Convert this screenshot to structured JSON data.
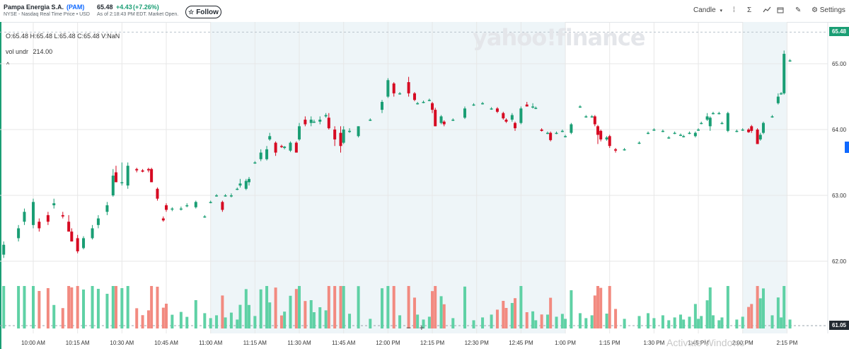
{
  "header": {
    "company": "Pampa Energia S.A.",
    "ticker": "(PAM)",
    "exchange_line": "NYSE - Nasdaq Real Time Price • USD",
    "price": "65.48",
    "change": "+4.43",
    "change_pct": "(+7.26%)",
    "as_of": "As of 2:18:43 PM EDT. Market Open.",
    "follow_label": "Follow",
    "follow_icon": "star-icon"
  },
  "toolbar": {
    "chart_type": "Candle",
    "settings_label": "Settings",
    "icons": [
      "chevron-down-icon",
      "compare-icon",
      "sigma-icon",
      "indicator-icon",
      "calendar-icon",
      "draw-icon",
      "gear-icon"
    ]
  },
  "info": {
    "ohlc": "O:65.48  H:65.48  L:65.48  C:65.48  V:NaN",
    "vol_label": "vol undr",
    "vol_value": "214.00",
    "collapse_glyph": "^"
  },
  "watermark": "yahoo!finance",
  "overlay_text": "Activate Windows",
  "zoom": {
    "minus": "−",
    "plus": "+"
  },
  "colors": {
    "up": "#1a9e74",
    "down": "#d60a22",
    "up_volume": "#5fd1a5",
    "down_volume": "#f28a80",
    "shade": "#eef5f8",
    "accent": "#0f69ff",
    "grid": "#e7e7e7"
  },
  "chart_data": {
    "type": "candlestick",
    "interval": "5 min",
    "x_tick_labels": [
      "10:00 AM",
      "10:15 AM",
      "10:30 AM",
      "10:45 AM",
      "11:00 AM",
      "11:15 AM",
      "11:30 AM",
      "11:45 AM",
      "12:00 PM",
      "12:15 PM",
      "12:30 PM",
      "12:45 PM",
      "1:00 PM",
      "1:15 PM",
      "1:30 PM",
      "1:45 PM",
      "2:00 PM",
      "2:15 PM"
    ],
    "y_tick_labels": [
      "62.00",
      "63.00",
      "64.00",
      "65.00"
    ],
    "y_ticks": [
      62,
      63,
      64,
      65
    ],
    "ylim": [
      61.05,
      65.55
    ],
    "last_price_label": "65.48",
    "last_price": 65.48,
    "volume_level_label": "61.05",
    "volume_level": 61.05,
    "shaded_ranges": [
      [
        "11:00 AM",
        "1:00 PM"
      ],
      [
        "2:00 PM",
        "2:15 PM"
      ]
    ],
    "candles": [
      {
        "t": "09:50",
        "o": 62.1,
        "h": 62.3,
        "l": 62.05,
        "c": 62.25
      },
      {
        "t": "09:55",
        "o": 62.35,
        "h": 62.55,
        "l": 62.3,
        "c": 62.5
      },
      {
        "t": "09:57",
        "o": 62.6,
        "h": 62.8,
        "l": 62.55,
        "c": 62.75
      },
      {
        "t": "10:00",
        "o": 62.55,
        "h": 62.95,
        "l": 62.5,
        "c": 62.9
      },
      {
        "t": "10:02",
        "o": 62.6,
        "h": 62.65,
        "l": 62.45,
        "c": 62.5
      },
      {
        "t": "10:05",
        "o": 62.7,
        "h": 62.75,
        "l": 62.55,
        "c": 62.6
      },
      {
        "t": "10:07",
        "o": 62.85,
        "h": 62.95,
        "l": 62.8,
        "c": 62.88
      },
      {
        "t": "10:10",
        "o": 62.7,
        "h": 62.75,
        "l": 62.65,
        "c": 62.68
      },
      {
        "t": "10:12",
        "o": 62.6,
        "h": 62.7,
        "l": 62.45,
        "c": 62.45
      },
      {
        "t": "10:13",
        "o": 62.45,
        "h": 62.5,
        "l": 62.3,
        "c": 62.3
      },
      {
        "t": "10:15",
        "o": 62.35,
        "h": 62.4,
        "l": 62.12,
        "c": 62.15
      },
      {
        "t": "10:17",
        "o": 62.2,
        "h": 62.38,
        "l": 62.18,
        "c": 62.35
      },
      {
        "t": "10:20",
        "o": 62.35,
        "h": 62.55,
        "l": 62.33,
        "c": 62.5
      },
      {
        "t": "10:22",
        "o": 62.55,
        "h": 62.7,
        "l": 62.5,
        "c": 62.65
      },
      {
        "t": "10:25",
        "o": 62.75,
        "h": 62.9,
        "l": 62.7,
        "c": 62.85
      },
      {
        "t": "10:27",
        "o": 63.0,
        "h": 63.4,
        "l": 62.98,
        "c": 63.3
      },
      {
        "t": "10:28",
        "o": 63.35,
        "h": 63.45,
        "l": 63.2,
        "c": 63.2
      },
      {
        "t": "10:30",
        "o": 63.2,
        "h": 63.5,
        "l": 63.15,
        "c": 63.2
      },
      {
        "t": "10:32",
        "o": 63.15,
        "h": 63.5,
        "l": 63.1,
        "c": 63.45
      },
      {
        "t": "10:35",
        "o": 63.4,
        "h": 63.42,
        "l": 63.35,
        "c": 63.38
      },
      {
        "t": "10:37",
        "o": 63.38,
        "h": 63.4,
        "l": 63.35,
        "c": 63.36
      },
      {
        "t": "10:39",
        "o": 63.4,
        "h": 63.42,
        "l": 63.35,
        "c": 63.38
      },
      {
        "t": "10:40",
        "o": 63.4,
        "h": 63.42,
        "l": 63.2,
        "c": 63.2
      },
      {
        "t": "10:42",
        "o": 63.1,
        "h": 63.12,
        "l": 62.92,
        "c": 62.95
      },
      {
        "t": "10:44",
        "o": 62.65,
        "h": 62.68,
        "l": 62.6,
        "c": 62.62
      },
      {
        "t": "10:45",
        "o": 62.85,
        "h": 62.88,
        "l": 62.75,
        "c": 62.78
      },
      {
        "t": "10:47",
        "o": 62.8,
        "h": 62.82,
        "l": 62.76,
        "c": 62.8
      },
      {
        "t": "10:50",
        "o": 62.8,
        "h": 62.83,
        "l": 62.77,
        "c": 62.8
      },
      {
        "t": "10:52",
        "o": 62.85,
        "h": 62.88,
        "l": 62.82,
        "c": 62.85
      },
      {
        "t": "10:55",
        "o": 62.82,
        "h": 62.92,
        "l": 62.8,
        "c": 62.9
      },
      {
        "t": "10:58",
        "o": 62.68,
        "h": 62.7,
        "l": 62.66,
        "c": 62.68
      },
      {
        "t": "11:00",
        "o": 62.9,
        "h": 62.92,
        "l": 62.88,
        "c": 62.9
      },
      {
        "t": "11:02",
        "o": 63.0,
        "h": 63.02,
        "l": 62.98,
        "c": 63.0
      },
      {
        "t": "11:04",
        "o": 62.9,
        "h": 62.92,
        "l": 62.75,
        "c": 62.78
      },
      {
        "t": "11:05",
        "o": 63.0,
        "h": 63.02,
        "l": 62.98,
        "c": 63.0
      },
      {
        "t": "11:07",
        "o": 63.0,
        "h": 63.03,
        "l": 62.97,
        "c": 63.0
      },
      {
        "t": "11:09",
        "o": 63.1,
        "h": 63.12,
        "l": 63.08,
        "c": 63.1
      },
      {
        "t": "11:10",
        "o": 63.15,
        "h": 63.25,
        "l": 63.12,
        "c": 63.18
      },
      {
        "t": "11:12",
        "o": 63.1,
        "h": 63.25,
        "l": 63.08,
        "c": 63.22
      },
      {
        "t": "11:13",
        "o": 63.2,
        "h": 63.28,
        "l": 63.15,
        "c": 63.25
      },
      {
        "t": "11:15",
        "o": 63.5,
        "h": 63.52,
        "l": 63.48,
        "c": 63.5
      },
      {
        "t": "11:17",
        "o": 63.55,
        "h": 63.7,
        "l": 63.52,
        "c": 63.65
      },
      {
        "t": "11:19",
        "o": 63.55,
        "h": 63.75,
        "l": 63.53,
        "c": 63.7
      },
      {
        "t": "11:20",
        "o": 63.85,
        "h": 63.95,
        "l": 63.83,
        "c": 63.9
      },
      {
        "t": "11:22",
        "o": 63.8,
        "h": 63.82,
        "l": 63.6,
        "c": 63.65
      },
      {
        "t": "11:24",
        "o": 63.75,
        "h": 63.77,
        "l": 63.72,
        "c": 63.74
      },
      {
        "t": "11:25",
        "o": 63.72,
        "h": 63.75,
        "l": 63.7,
        "c": 63.74
      },
      {
        "t": "11:27",
        "o": 63.68,
        "h": 63.82,
        "l": 63.66,
        "c": 63.8
      },
      {
        "t": "11:29",
        "o": 63.8,
        "h": 63.82,
        "l": 63.65,
        "c": 63.65
      },
      {
        "t": "11:30",
        "o": 63.85,
        "h": 64.1,
        "l": 63.83,
        "c": 64.05
      },
      {
        "t": "11:32",
        "o": 64.15,
        "h": 64.2,
        "l": 64.05,
        "c": 64.08
      },
      {
        "t": "11:34",
        "o": 64.1,
        "h": 64.2,
        "l": 64.05,
        "c": 64.15
      },
      {
        "t": "11:35",
        "o": 64.12,
        "h": 64.15,
        "l": 64.1,
        "c": 64.12
      },
      {
        "t": "11:37",
        "o": 64.12,
        "h": 64.2,
        "l": 64.08,
        "c": 64.15
      },
      {
        "t": "11:39",
        "o": 64.2,
        "h": 64.25,
        "l": 64.18,
        "c": 64.22
      },
      {
        "t": "11:40",
        "o": 64.18,
        "h": 64.25,
        "l": 64.0,
        "c": 64.02
      },
      {
        "t": "11:42",
        "o": 64.0,
        "h": 64.05,
        "l": 63.75,
        "c": 63.85
      },
      {
        "t": "11:44",
        "o": 63.95,
        "h": 64.05,
        "l": 63.65,
        "c": 63.75
      },
      {
        "t": "11:45",
        "o": 63.8,
        "h": 64.05,
        "l": 63.78,
        "c": 64.0
      },
      {
        "t": "11:47",
        "o": 63.98,
        "h": 64.02,
        "l": 63.95,
        "c": 63.98
      },
      {
        "t": "11:50",
        "o": 63.9,
        "h": 64.05,
        "l": 63.88,
        "c": 64.05
      },
      {
        "t": "11:54",
        "o": 64.15,
        "h": 64.17,
        "l": 64.13,
        "c": 64.15
      },
      {
        "t": "11:58",
        "o": 64.3,
        "h": 64.45,
        "l": 64.25,
        "c": 64.42
      },
      {
        "t": "12:00",
        "o": 64.5,
        "h": 64.78,
        "l": 64.48,
        "c": 64.75
      },
      {
        "t": "12:02",
        "o": 64.7,
        "h": 64.72,
        "l": 64.5,
        "c": 64.55
      },
      {
        "t": "12:04",
        "o": 64.55,
        "h": 64.57,
        "l": 64.53,
        "c": 64.55
      },
      {
        "t": "12:07",
        "o": 64.72,
        "h": 64.8,
        "l": 64.5,
        "c": 64.55
      },
      {
        "t": "12:09",
        "o": 64.55,
        "h": 64.57,
        "l": 64.43,
        "c": 64.45
      },
      {
        "t": "12:10",
        "o": 64.4,
        "h": 64.42,
        "l": 64.38,
        "c": 64.4
      },
      {
        "t": "12:12",
        "o": 64.42,
        "h": 64.44,
        "l": 64.4,
        "c": 64.42
      },
      {
        "t": "12:14",
        "o": 64.45,
        "h": 64.47,
        "l": 64.43,
        "c": 64.45
      },
      {
        "t": "12:15",
        "o": 64.4,
        "h": 64.42,
        "l": 64.25,
        "c": 64.3
      },
      {
        "t": "12:16",
        "o": 64.3,
        "h": 64.33,
        "l": 64.05,
        "c": 64.05
      },
      {
        "t": "12:18",
        "o": 64.1,
        "h": 64.22,
        "l": 64.08,
        "c": 64.2
      },
      {
        "t": "12:19",
        "o": 64.12,
        "h": 64.14,
        "l": 64.05,
        "c": 64.08
      },
      {
        "t": "12:22",
        "o": 64.15,
        "h": 64.17,
        "l": 64.13,
        "c": 64.15
      },
      {
        "t": "12:26",
        "o": 64.18,
        "h": 64.35,
        "l": 64.16,
        "c": 64.32
      },
      {
        "t": "12:29",
        "o": 64.38,
        "h": 64.4,
        "l": 64.36,
        "c": 64.38
      },
      {
        "t": "12:32",
        "o": 64.4,
        "h": 64.42,
        "l": 64.38,
        "c": 64.4
      },
      {
        "t": "12:35",
        "o": 64.32,
        "h": 64.34,
        "l": 64.3,
        "c": 64.32
      },
      {
        "t": "12:37",
        "o": 64.32,
        "h": 64.34,
        "l": 64.25,
        "c": 64.27
      },
      {
        "t": "12:39",
        "o": 64.25,
        "h": 64.27,
        "l": 64.15,
        "c": 64.17
      },
      {
        "t": "12:40",
        "o": 64.15,
        "h": 64.17,
        "l": 64.1,
        "c": 64.12
      },
      {
        "t": "12:42",
        "o": 64.15,
        "h": 64.25,
        "l": 64.12,
        "c": 64.22
      },
      {
        "t": "12:43",
        "o": 64.1,
        "h": 64.12,
        "l": 63.98,
        "c": 64.02
      },
      {
        "t": "12:45",
        "o": 64.1,
        "h": 64.35,
        "l": 64.08,
        "c": 64.32
      },
      {
        "t": "12:47",
        "o": 64.38,
        "h": 64.42,
        "l": 64.35,
        "c": 64.35
      },
      {
        "t": "12:49",
        "o": 64.35,
        "h": 64.4,
        "l": 64.32,
        "c": 64.35
      },
      {
        "t": "12:50",
        "o": 64.33,
        "h": 64.35,
        "l": 64.31,
        "c": 64.33
      },
      {
        "t": "12:52",
        "o": 64.0,
        "h": 64.02,
        "l": 63.97,
        "c": 63.98
      },
      {
        "t": "12:54",
        "o": 63.95,
        "h": 63.97,
        "l": 63.93,
        "c": 63.95
      },
      {
        "t": "12:55",
        "o": 63.95,
        "h": 63.97,
        "l": 63.82,
        "c": 63.84
      },
      {
        "t": "12:57",
        "o": 63.95,
        "h": 63.97,
        "l": 63.93,
        "c": 63.95
      },
      {
        "t": "12:59",
        "o": 63.98,
        "h": 64.0,
        "l": 63.96,
        "c": 63.98
      },
      {
        "t": "1:00",
        "o": 63.9,
        "h": 63.92,
        "l": 63.88,
        "c": 63.9
      },
      {
        "t": "1:02",
        "o": 63.95,
        "h": 64.1,
        "l": 63.93,
        "c": 64.08
      },
      {
        "t": "1:05",
        "o": 64.35,
        "h": 64.37,
        "l": 64.33,
        "c": 64.35
      },
      {
        "t": "1:07",
        "o": 64.2,
        "h": 64.22,
        "l": 64.18,
        "c": 64.2
      },
      {
        "t": "1:09",
        "o": 64.2,
        "h": 64.22,
        "l": 64.18,
        "c": 64.2
      },
      {
        "t": "1:10",
        "o": 64.2,
        "h": 64.22,
        "l": 64.05,
        "c": 64.08
      },
      {
        "t": "1:11",
        "o": 64.05,
        "h": 64.07,
        "l": 63.78,
        "c": 63.92
      },
      {
        "t": "1:12",
        "o": 63.98,
        "h": 64.0,
        "l": 63.82,
        "c": 63.85
      },
      {
        "t": "1:14",
        "o": 63.85,
        "h": 63.9,
        "l": 63.83,
        "c": 63.88
      },
      {
        "t": "1:15",
        "o": 63.9,
        "h": 63.92,
        "l": 63.72,
        "c": 63.75
      },
      {
        "t": "1:17",
        "o": 63.7,
        "h": 63.72,
        "l": 63.65,
        "c": 63.68
      },
      {
        "t": "1:20",
        "o": 63.7,
        "h": 63.72,
        "l": 63.68,
        "c": 63.7
      },
      {
        "t": "1:25",
        "o": 63.8,
        "h": 63.82,
        "l": 63.78,
        "c": 63.8
      },
      {
        "t": "1:28",
        "o": 63.95,
        "h": 63.97,
        "l": 63.93,
        "c": 63.95
      },
      {
        "t": "1:30",
        "o": 64.0,
        "h": 64.02,
        "l": 63.98,
        "c": 64.0
      },
      {
        "t": "1:33",
        "o": 63.98,
        "h": 64.0,
        "l": 63.96,
        "c": 63.98
      },
      {
        "t": "1:35",
        "o": 63.88,
        "h": 63.9,
        "l": 63.86,
        "c": 63.88
      },
      {
        "t": "1:37",
        "o": 63.95,
        "h": 63.97,
        "l": 63.93,
        "c": 63.95
      },
      {
        "t": "1:39",
        "o": 63.92,
        "h": 63.94,
        "l": 63.9,
        "c": 63.92
      },
      {
        "t": "1:40",
        "o": 63.9,
        "h": 63.92,
        "l": 63.88,
        "c": 63.9
      },
      {
        "t": "1:42",
        "o": 63.95,
        "h": 63.97,
        "l": 63.93,
        "c": 63.95
      },
      {
        "t": "1:44",
        "o": 63.9,
        "h": 63.97,
        "l": 63.88,
        "c": 63.95
      },
      {
        "t": "1:45",
        "o": 64.0,
        "h": 64.02,
        "l": 63.98,
        "c": 64.0
      },
      {
        "t": "1:46",
        "o": 64.1,
        "h": 64.12,
        "l": 64.08,
        "c": 64.1
      },
      {
        "t": "1:48",
        "o": 64.15,
        "h": 64.25,
        "l": 64.13,
        "c": 64.2
      },
      {
        "t": "1:49",
        "o": 64.05,
        "h": 64.2,
        "l": 63.98,
        "c": 64.18
      },
      {
        "t": "1:50",
        "o": 64.25,
        "h": 64.27,
        "l": 64.23,
        "c": 64.25
      },
      {
        "t": "1:52",
        "o": 64.25,
        "h": 64.27,
        "l": 64.23,
        "c": 64.25
      },
      {
        "t": "1:53",
        "o": 64.1,
        "h": 64.12,
        "l": 64.08,
        "c": 64.1
      },
      {
        "t": "1:55",
        "o": 63.98,
        "h": 64.27,
        "l": 63.96,
        "c": 64.25
      },
      {
        "t": "1:58",
        "o": 63.98,
        "h": 64.0,
        "l": 63.96,
        "c": 63.98
      },
      {
        "t": "2:00",
        "o": 64.0,
        "h": 64.02,
        "l": 63.98,
        "c": 64.0
      },
      {
        "t": "2:02",
        "o": 64.0,
        "h": 64.02,
        "l": 63.95,
        "c": 63.96
      },
      {
        "t": "2:03",
        "o": 64.05,
        "h": 64.07,
        "l": 63.95,
        "c": 63.98
      },
      {
        "t": "2:05",
        "o": 64.0,
        "h": 64.02,
        "l": 63.78,
        "c": 63.78
      },
      {
        "t": "2:06",
        "o": 63.85,
        "h": 63.95,
        "l": 63.83,
        "c": 63.92
      },
      {
        "t": "2:07",
        "o": 63.95,
        "h": 64.12,
        "l": 63.93,
        "c": 64.1
      },
      {
        "t": "2:10",
        "o": 64.2,
        "h": 64.22,
        "l": 64.18,
        "c": 64.2
      },
      {
        "t": "2:12",
        "o": 64.4,
        "h": 64.55,
        "l": 64.38,
        "c": 64.5
      },
      {
        "t": "2:13",
        "o": 64.55,
        "h": 64.57,
        "l": 64.53,
        "c": 64.55
      },
      {
        "t": "2:14",
        "o": 64.55,
        "h": 65.2,
        "l": 64.53,
        "c": 65.15
      },
      {
        "t": "2:16",
        "o": 65.05,
        "h": 65.07,
        "l": 65.03,
        "c": 65.05
      }
    ]
  }
}
